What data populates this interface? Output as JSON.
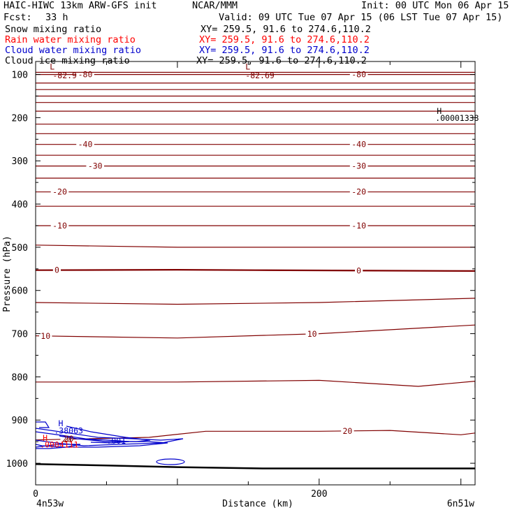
{
  "header": {
    "title": "HAIC-HIWC 13km ARW-GFS init",
    "center": "NCAR/MMM",
    "init": "Init: 00 UTC Mon 06 Apr 15",
    "fcst_label": "Fcst:",
    "fcst_value": "33 h",
    "valid": "Valid: 09 UTC Tue 07 Apr 15 (06 LST Tue 07 Apr 15)",
    "fields": [
      {
        "name": "Snow mixing ratio",
        "xy": "XY= 259.5, 91.6 to 274.6,110.2",
        "color": "#000000"
      },
      {
        "name": "Rain water mixing ratio",
        "xy": "XY= 259.5, 91.6 to 274.6,110.2",
        "color": "#ff0000"
      },
      {
        "name": "Cloud water mixing ratio",
        "xy": "XY= 259.5, 91.6 to 274.6,110.2",
        "color": "#0000cc"
      },
      {
        "name": "Cloud ice mixing ratio",
        "xy": "XY= 259.5, 91.6 to 274.6,110.2",
        "color": "#000000"
      }
    ]
  },
  "chart_data": {
    "type": "line",
    "xlabel": "Distance (km)",
    "ylabel": "Pressure (hPa)",
    "xlim": [
      0,
      310
    ],
    "ylim": [
      1050,
      70
    ],
    "x_ticks": [
      0,
      200
    ],
    "y_ticks": [
      100,
      200,
      300,
      400,
      500,
      600,
      700,
      800,
      900,
      1000
    ],
    "x_endpoints": {
      "left": "4n53w",
      "right": "6n51w"
    },
    "temperature_contour_color": "#800000",
    "cloud_water_color": "#0000cc",
    "contours_temperature": [
      {
        "label": "-80",
        "points": [
          [
            0,
            100
          ],
          [
            310,
            100
          ]
        ],
        "labels_at": [
          35,
          228
        ]
      },
      {
        "label": "-40",
        "points": [
          [
            0,
            262
          ],
          [
            310,
            262
          ]
        ],
        "labels_at": [
          35,
          228
        ]
      },
      {
        "label": "-30",
        "points": [
          [
            0,
            312
          ],
          [
            310,
            312
          ]
        ],
        "labels_at": [
          42,
          228
        ]
      },
      {
        "label": "-20",
        "points": [
          [
            0,
            372
          ],
          [
            310,
            372
          ]
        ],
        "labels_at": [
          17,
          228
        ]
      },
      {
        "label": "-10",
        "points": [
          [
            0,
            450
          ],
          [
            310,
            450
          ]
        ],
        "labels_at": [
          17,
          228
        ]
      },
      {
        "label": "0",
        "points": [
          [
            0,
            553
          ],
          [
            100,
            552
          ],
          [
            155,
            553
          ],
          [
            310,
            555
          ]
        ],
        "labels_at": [
          15,
          228
        ],
        "bold": true
      },
      {
        "label": "10",
        "points": [
          [
            0,
            705
          ],
          [
            100,
            710
          ],
          [
            200,
            700
          ],
          [
            310,
            680
          ]
        ],
        "labels_at": [
          7,
          195
        ]
      },
      {
        "label": "20",
        "points": [
          [
            0,
            946
          ],
          [
            80,
            940
          ],
          [
            120,
            926
          ],
          [
            200,
            926
          ],
          [
            250,
            924
          ],
          [
            300,
            934
          ],
          [
            310,
            930
          ]
        ],
        "labels_at": [
          22,
          220
        ]
      },
      {
        "label": "",
        "points": [
          [
            0,
            95
          ],
          [
            310,
            95
          ]
        ]
      },
      {
        "label": "",
        "points": [
          [
            0,
            120
          ],
          [
            310,
            120
          ]
        ]
      },
      {
        "label": "",
        "points": [
          [
            0,
            135
          ],
          [
            310,
            135
          ]
        ]
      },
      {
        "label": "",
        "points": [
          [
            0,
            150
          ],
          [
            310,
            150
          ]
        ]
      },
      {
        "label": "",
        "points": [
          [
            0,
            165
          ],
          [
            310,
            165
          ]
        ]
      },
      {
        "label": "",
        "points": [
          [
            0,
            185
          ],
          [
            310,
            185
          ]
        ]
      },
      {
        "label": "",
        "points": [
          [
            0,
            215
          ],
          [
            310,
            215
          ]
        ]
      },
      {
        "label": "",
        "points": [
          [
            0,
            237
          ],
          [
            310,
            237
          ]
        ]
      },
      {
        "label": "",
        "points": [
          [
            0,
            287
          ],
          [
            310,
            287
          ]
        ]
      },
      {
        "label": "",
        "points": [
          [
            0,
            340
          ],
          [
            310,
            340
          ]
        ]
      },
      {
        "label": "",
        "points": [
          [
            0,
            405
          ],
          [
            310,
            405
          ]
        ]
      },
      {
        "label": "",
        "points": [
          [
            0,
            495
          ],
          [
            100,
            500
          ],
          [
            200,
            500
          ],
          [
            310,
            500
          ]
        ]
      },
      {
        "label": "",
        "points": [
          [
            0,
            628
          ],
          [
            100,
            632
          ],
          [
            200,
            628
          ],
          [
            310,
            618
          ]
        ]
      },
      {
        "label": "",
        "points": [
          [
            0,
            812
          ],
          [
            100,
            812
          ],
          [
            200,
            808
          ],
          [
            270,
            822
          ],
          [
            310,
            810
          ],
          [
            310,
            825
          ]
        ]
      }
    ],
    "contour_labels_temperature_extra": [
      {
        "text": "-82.9",
        "x": 12,
        "y": 102
      },
      {
        "text": "-82.69",
        "x": 148,
        "y": 102
      }
    ],
    "extremes": [
      {
        "text": "L",
        "x": 10,
        "y": 82,
        "color": "#800000"
      },
      {
        "text": "L",
        "x": 148,
        "y": 82,
        "color": "#800000"
      },
      {
        "text": "H",
        "x": 283,
        "y": 185,
        "color": "#000000"
      },
      {
        "text": ".00001338",
        "x": 282,
        "y": 201,
        "color": "#000000"
      },
      {
        "text": "H",
        "x": 16,
        "y": 908,
        "color": "#0000cc"
      },
      {
        "text": ".38063",
        "x": 13,
        "y": 925,
        "color": "#0000cc"
      },
      {
        "text": ".001",
        "x": 50,
        "y": 948,
        "color": "#0000cc"
      },
      {
        "text": "H",
        "x": 5,
        "y": 942,
        "color": "#ff0000"
      },
      {
        "text": "20",
        "x": 20,
        "y": 943,
        "color": "#800000"
      },
      {
        "text": ".0004111",
        "x": 3,
        "y": 957,
        "color": "#ff0000"
      }
    ],
    "terrain": {
      "points": [
        [
          0,
          1002
        ],
        [
          50,
          1005
        ],
        [
          100,
          1009
        ],
        [
          160,
          1012
        ],
        [
          250,
          1012
        ],
        [
          310,
          1012
        ]
      ]
    }
  }
}
